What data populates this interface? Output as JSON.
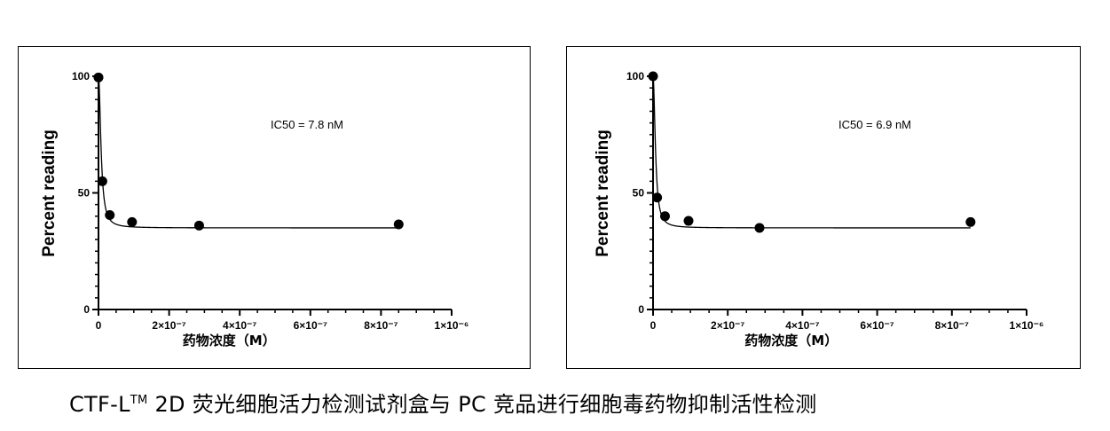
{
  "caption": {
    "prefix": "CTF-L",
    "superscript": "TM",
    "suffix": " 2D 荧光细胞活力检测试剂盒与 PC 竞品进行细胞毒药物抑制活性检测"
  },
  "chart_data": [
    {
      "type": "scatter",
      "title": "",
      "xlabel": "药物浓度（M）",
      "ylabel": "Percent reading",
      "xlim": [
        0,
        1e-06
      ],
      "ylim": [
        0,
        100
      ],
      "x_ticks": [
        {
          "value": 0,
          "label": "0"
        },
        {
          "value": 2e-07,
          "label": "2×10⁻⁷"
        },
        {
          "value": 4e-07,
          "label": "4×10⁻⁷"
        },
        {
          "value": 6e-07,
          "label": "6×10⁻⁷"
        },
        {
          "value": 8e-07,
          "label": "8×10⁻⁷"
        },
        {
          "value": 1e-06,
          "label": "1×10⁻⁶"
        }
      ],
      "y_ticks": [
        {
          "value": 0,
          "label": "0"
        },
        {
          "value": 50,
          "label": "50"
        },
        {
          "value": 100,
          "label": "100"
        }
      ],
      "annotation": "IC50 = 7.8 nM",
      "points": [
        {
          "x": 0,
          "y": 99.5
        },
        {
          "x": 1.1e-08,
          "y": 55
        },
        {
          "x": 3.2e-08,
          "y": 40.5
        },
        {
          "x": 9.5e-08,
          "y": 37.5
        },
        {
          "x": 2.85e-07,
          "y": 36
        },
        {
          "x": 8.5e-07,
          "y": 36.5
        }
      ],
      "fit": {
        "bottom": 35,
        "top": 100,
        "ic50": 7.8e-09,
        "hill": 2
      }
    },
    {
      "type": "scatter",
      "title": "",
      "xlabel": "药物浓度（M）",
      "ylabel": "Percent reading",
      "xlim": [
        0,
        1e-06
      ],
      "ylim": [
        0,
        100
      ],
      "x_ticks": [
        {
          "value": 0,
          "label": "0"
        },
        {
          "value": 2e-07,
          "label": "2×10⁻⁷"
        },
        {
          "value": 4e-07,
          "label": "4×10⁻⁷"
        },
        {
          "value": 6e-07,
          "label": "6×10⁻⁷"
        },
        {
          "value": 8e-07,
          "label": "8×10⁻⁷"
        },
        {
          "value": 1e-06,
          "label": "1×10⁻⁶"
        }
      ],
      "y_ticks": [
        {
          "value": 0,
          "label": "0"
        },
        {
          "value": 50,
          "label": "50"
        },
        {
          "value": 100,
          "label": "100"
        }
      ],
      "annotation": "IC50 = 6.9 nM",
      "points": [
        {
          "x": 0,
          "y": 100
        },
        {
          "x": 1.1e-08,
          "y": 48
        },
        {
          "x": 3.2e-08,
          "y": 40
        },
        {
          "x": 9.5e-08,
          "y": 38
        },
        {
          "x": 2.85e-07,
          "y": 35
        },
        {
          "x": 8.5e-07,
          "y": 37.5
        }
      ],
      "fit": {
        "bottom": 35,
        "top": 100,
        "ic50": 6.9e-09,
        "hill": 2
      }
    }
  ]
}
